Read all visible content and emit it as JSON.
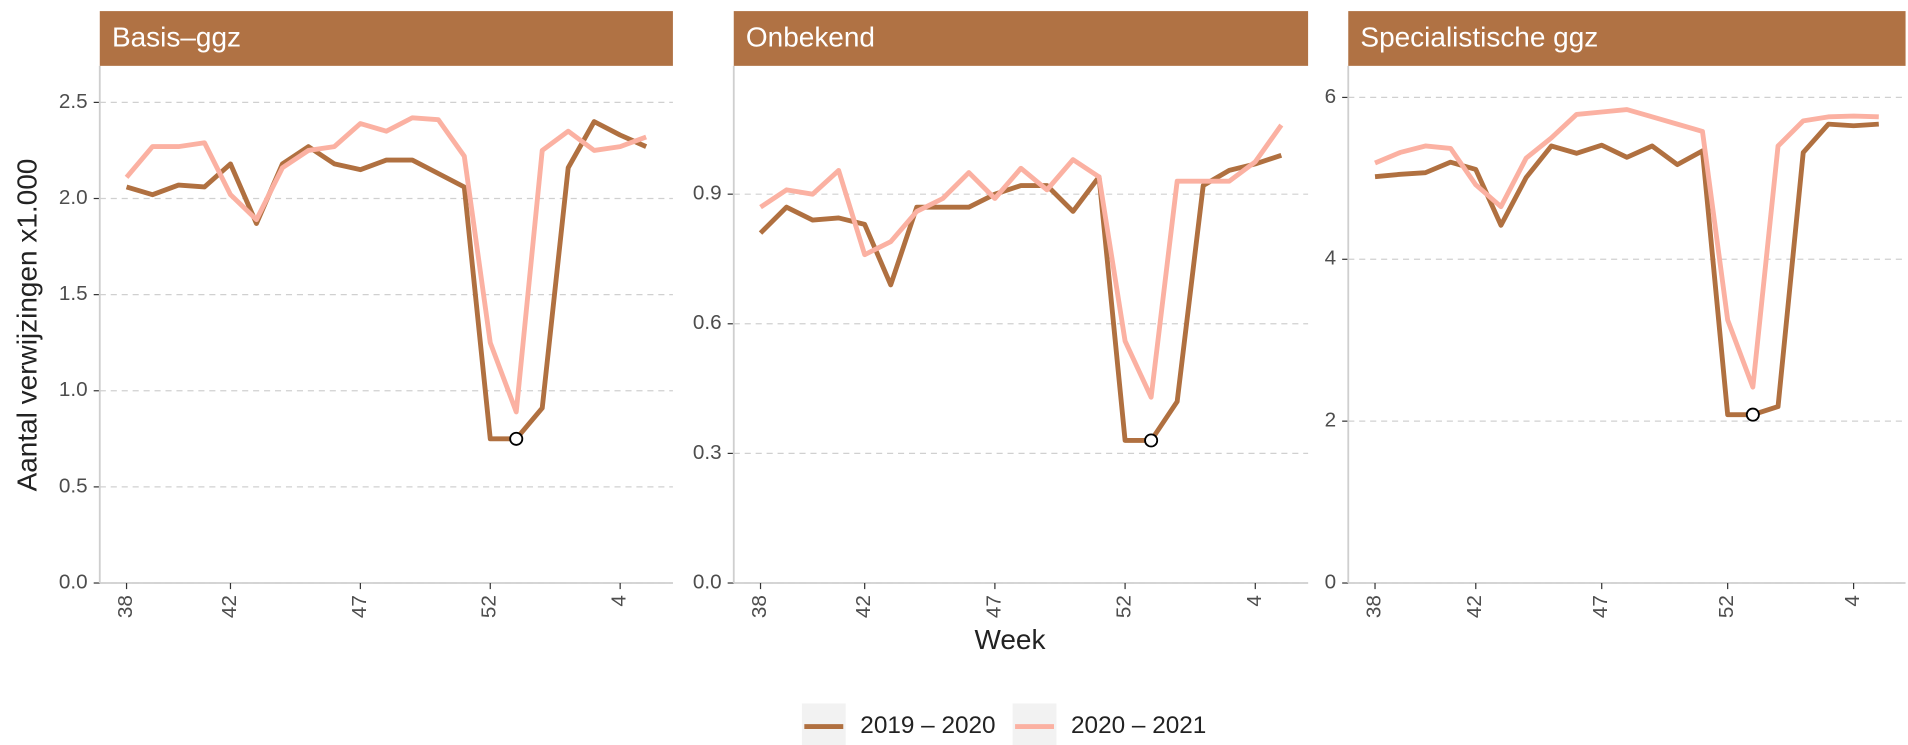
{
  "y_label": "Aantal verwijzingen x1.000",
  "x_label": "Week",
  "chart_data": [
    {
      "type": "line",
      "title": "Basis–ggz",
      "categories": [
        "38",
        null,
        null,
        null,
        "42",
        null,
        null,
        null,
        null,
        "47",
        null,
        null,
        null,
        null,
        "52",
        null,
        null,
        null,
        null,
        "4",
        null
      ],
      "ylim": [
        0,
        2.69
      ],
      "yticks": [
        {
          "value": 0,
          "label": "0.0"
        },
        0.5,
        {
          "value": 1,
          "label": "1.0"
        },
        1.5,
        {
          "value": 2,
          "label": "2.0"
        },
        2.5
      ],
      "grid": true,
      "highlight": {
        "series": 0,
        "index": 15
      },
      "series": [
        {
          "name": "2019 – 2020",
          "color": "#b07040",
          "values": [
            2.06,
            2.02,
            2.07,
            2.06,
            2.18,
            1.87,
            2.18,
            2.27,
            2.18,
            2.15,
            2.2,
            2.2,
            2.13,
            2.06,
            0.75,
            0.75,
            0.91,
            2.16,
            2.4,
            2.33,
            2.27
          ]
        },
        {
          "name": "2020 – 2021",
          "color": "#fbb1a2",
          "values": [
            2.11,
            2.27,
            2.27,
            2.29,
            2.02,
            1.89,
            2.16,
            2.25,
            2.27,
            2.39,
            2.35,
            2.42,
            2.41,
            2.22,
            1.25,
            0.89,
            2.25,
            2.35,
            2.25,
            2.27,
            2.32
          ]
        }
      ]
    },
    {
      "type": "line",
      "title": "Onbekend",
      "categories": [
        "38",
        null,
        null,
        null,
        "42",
        null,
        null,
        null,
        null,
        "47",
        null,
        null,
        null,
        null,
        "52",
        null,
        null,
        null,
        null,
        "4",
        null
      ],
      "ylim": [
        0,
        1.197
      ],
      "yticks": [
        {
          "value": 0,
          "label": "0.0"
        },
        0.3,
        0.6,
        0.9
      ],
      "grid": true,
      "highlight": {
        "series": 0,
        "index": 15
      },
      "series": [
        {
          "name": "2019 – 2020",
          "color": "#b07040",
          "values": [
            0.81,
            0.87,
            0.84,
            0.845,
            0.83,
            0.69,
            0.87,
            0.87,
            0.87,
            0.9,
            0.92,
            0.92,
            0.86,
            0.94,
            0.33,
            0.33,
            0.42,
            0.92,
            0.955,
            0.97,
            0.99
          ]
        },
        {
          "name": "2020 – 2021",
          "color": "#fbb1a2",
          "values": [
            0.87,
            0.91,
            0.9,
            0.955,
            0.76,
            0.79,
            0.86,
            0.89,
            0.95,
            0.89,
            0.96,
            0.91,
            0.98,
            0.94,
            0.56,
            0.43,
            0.93,
            0.93,
            0.93,
            0.975,
            1.06
          ]
        }
      ]
    },
    {
      "type": "line",
      "title": "Specialistische ggz",
      "categories": [
        "38",
        null,
        null,
        null,
        "42",
        null,
        null,
        null,
        null,
        "47",
        null,
        null,
        null,
        null,
        "52",
        null,
        null,
        null,
        null,
        "4",
        null
      ],
      "ylim": [
        0,
        6.39
      ],
      "yticks": [
        0,
        2,
        4,
        6
      ],
      "grid": true,
      "highlight": {
        "series": 0,
        "index": 15
      },
      "series": [
        {
          "name": "2019 – 2020",
          "color": "#b07040",
          "values": [
            5.02,
            5.05,
            5.07,
            5.2,
            5.11,
            4.42,
            5.01,
            5.4,
            5.31,
            5.41,
            5.26,
            5.4,
            5.17,
            5.34,
            2.08,
            2.08,
            2.18,
            5.32,
            5.67,
            5.65,
            5.67
          ]
        },
        {
          "name": "2020 – 2021",
          "color": "#fbb1a2",
          "values": [
            5.19,
            5.32,
            5.4,
            5.37,
            4.92,
            4.65,
            5.25,
            5.5,
            5.79,
            5.82,
            5.85,
            5.76,
            5.67,
            5.58,
            3.25,
            2.42,
            5.4,
            5.71,
            5.76,
            5.77,
            5.76
          ]
        }
      ]
    }
  ]
}
